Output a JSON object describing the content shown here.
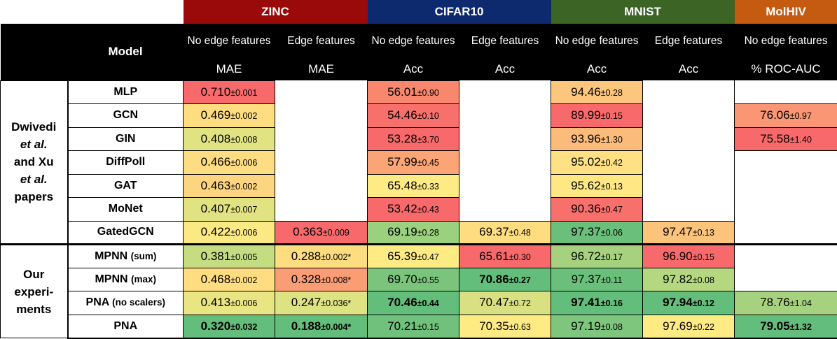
{
  "datasets": [
    {
      "name": "ZINC",
      "color": "#9b0a0a"
    },
    {
      "name": "CIFAR10",
      "color": "#0d2a6e"
    },
    {
      "name": "MNIST",
      "color": "#3c6425"
    },
    {
      "name": "MolHIV",
      "color": "#c55a11"
    }
  ],
  "header": {
    "model_label": "Model",
    "sub": [
      "No edge features",
      "Edge features",
      "No edge features",
      "Edge features",
      "No edge features",
      "Edge features",
      "No edge features"
    ],
    "metrics": [
      "MAE",
      "MAE",
      "Acc",
      "Acc",
      "Acc",
      "Acc",
      "% ROC-AUC"
    ]
  },
  "groups": {
    "g1": {
      "line1": "Dwivedi",
      "line2": "et al.",
      "line3": "and Xu",
      "line4": "et al.",
      "line5": "papers"
    },
    "g2": {
      "line1": "Our",
      "line2": "experi-",
      "line3": "ments"
    }
  },
  "rows": [
    {
      "model": "MLP",
      "suffix": "",
      "cells": [
        {
          "v": "0.710",
          "e": "±0.001",
          "c": "#f8696b"
        },
        null,
        {
          "v": "56.01",
          "e": "±0.90",
          "c": "#f8876e"
        },
        null,
        {
          "v": "94.46",
          "e": "±0.28",
          "c": "#fcc77c"
        },
        null,
        null
      ]
    },
    {
      "model": "GCN",
      "suffix": "",
      "cells": [
        {
          "v": "0.469",
          "e": "±0.002",
          "c": "#fedd81"
        },
        null,
        {
          "v": "54.46",
          "e": "±0.10",
          "c": "#f8706c"
        },
        null,
        {
          "v": "89.99",
          "e": "±0.15",
          "c": "#f8696b"
        },
        null,
        {
          "v": "76.06",
          "e": "±0.97",
          "c": "#fa9673"
        }
      ]
    },
    {
      "model": "GIN",
      "suffix": "",
      "cells": [
        {
          "v": "0.408",
          "e": "±0.008",
          "c": "#e1e383"
        },
        null,
        {
          "v": "53.28",
          "e": "±3.70",
          "c": "#f8696b"
        },
        null,
        {
          "v": "93.96",
          "e": "±1.30",
          "c": "#fbbb7a"
        },
        null,
        {
          "v": "75.58",
          "e": "±1.40",
          "c": "#f8696b"
        }
      ]
    },
    {
      "model": "DiffPoll",
      "suffix": "",
      "cells": [
        {
          "v": "0.466",
          "e": "±0.006",
          "c": "#fedc81"
        },
        null,
        {
          "v": "57.99",
          "e": "±0.45",
          "c": "#fba576"
        },
        null,
        {
          "v": "95.02",
          "e": "±0.42",
          "c": "#ffe083"
        },
        null,
        null
      ]
    },
    {
      "model": "GAT",
      "suffix": "",
      "cells": [
        {
          "v": "0.463",
          "e": "±0.002",
          "c": "#fdd47f"
        },
        null,
        {
          "v": "65.48",
          "e": "±0.33",
          "c": "#ffeb84"
        },
        null,
        {
          "v": "95.62",
          "e": "±0.13",
          "c": "#ffe884"
        },
        null,
        null
      ]
    },
    {
      "model": "MoNet",
      "suffix": "",
      "cells": [
        {
          "v": "0.407",
          "e": "±0.007",
          "c": "#e1e383"
        },
        null,
        {
          "v": "53.42",
          "e": "±0.43",
          "c": "#f8696b"
        },
        null,
        {
          "v": "90.36",
          "e": "±0.47",
          "c": "#f8706c"
        },
        null,
        null
      ]
    },
    {
      "model": "GatedGCN",
      "suffix": "",
      "cells": [
        {
          "v": "0.422",
          "e": "±0.006",
          "c": "#fbe983"
        },
        {
          "v": "0.363",
          "e": "±0.009",
          "c": "#f8696b"
        },
        {
          "v": "69.19",
          "e": "±0.28",
          "c": "#9bd07e"
        },
        {
          "v": "69.37",
          "e": "±0.48",
          "c": "#fedd81"
        },
        {
          "v": "97.37",
          "e": "±0.06",
          "c": "#6ac07b"
        },
        {
          "v": "97.47",
          "e": "±0.13",
          "c": "#fcc37b"
        },
        null
      ]
    },
    {
      "model": "MPNN",
      "suffix": "(sum)",
      "cells": [
        {
          "v": "0.381",
          "e": "±0.005",
          "c": "#c4dc82"
        },
        {
          "v": "0.288",
          "e": "±0.002*",
          "c": "#fedd81"
        },
        {
          "v": "65.39",
          "e": "±0.47",
          "c": "#ffeb84"
        },
        {
          "v": "65.61",
          "e": "±0.30",
          "c": "#f8696b"
        },
        {
          "v": "96.72",
          "e": "±0.17",
          "c": "#a6d27f"
        },
        {
          "v": "96.90",
          "e": "±0.15",
          "c": "#f8696b"
        },
        null
      ]
    },
    {
      "model": "MPNN",
      "suffix": "(max)",
      "cells": [
        {
          "v": "0.468",
          "e": "±0.002",
          "c": "#fedd81"
        },
        {
          "v": "0.328",
          "e": "±0.008*",
          "c": "#fa9d75"
        },
        {
          "v": "69.70",
          "e": "±0.55",
          "c": "#7ac47c"
        },
        {
          "v": "70.86",
          "e": "±0.27",
          "c": "#63be7b",
          "b": true
        },
        {
          "v": "97.37",
          "e": "±0.11",
          "c": "#6ac07b"
        },
        {
          "v": "97.82",
          "e": "±0.08",
          "c": "#b4d780"
        },
        null
      ]
    },
    {
      "model": "PNA",
      "suffix": "(no scalers)",
      "cells": [
        {
          "v": "0.413",
          "e": "±0.006",
          "c": "#e9e583"
        },
        {
          "v": "0.247",
          "e": "±0.036*",
          "c": "#dde282"
        },
        {
          "v": "70.46",
          "e": "±0.44",
          "c": "#63be7b",
          "b": true
        },
        {
          "v": "70.47",
          "e": "±0.72",
          "c": "#d8e082"
        },
        {
          "v": "97.41",
          "e": "±0.16",
          "c": "#63be7b",
          "b": true
        },
        {
          "v": "97.94",
          "e": "±0.12",
          "c": "#63be7b",
          "b": true
        },
        {
          "v": "78.76",
          "e": "±1.04",
          "c": "#a6d27f"
        }
      ]
    },
    {
      "model": "PNA",
      "suffix": "",
      "cells": [
        {
          "v": "0.320",
          "e": "±0.032",
          "c": "#63be7b",
          "b": true
        },
        {
          "v": "0.188",
          "e": "±0.004*",
          "c": "#63be7b",
          "b": true
        },
        {
          "v": "70.21",
          "e": "±0.15",
          "c": "#6fc17c"
        },
        {
          "v": "70.35",
          "e": "±0.63",
          "c": "#ffeb84"
        },
        {
          "v": "97.19",
          "e": "±0.08",
          "c": "#7ec57d"
        },
        {
          "v": "97.69",
          "e": "±0.22",
          "c": "#ffeb84"
        },
        {
          "v": "79.05",
          "e": "±1.32",
          "c": "#63be7b",
          "b": true
        }
      ]
    }
  ]
}
